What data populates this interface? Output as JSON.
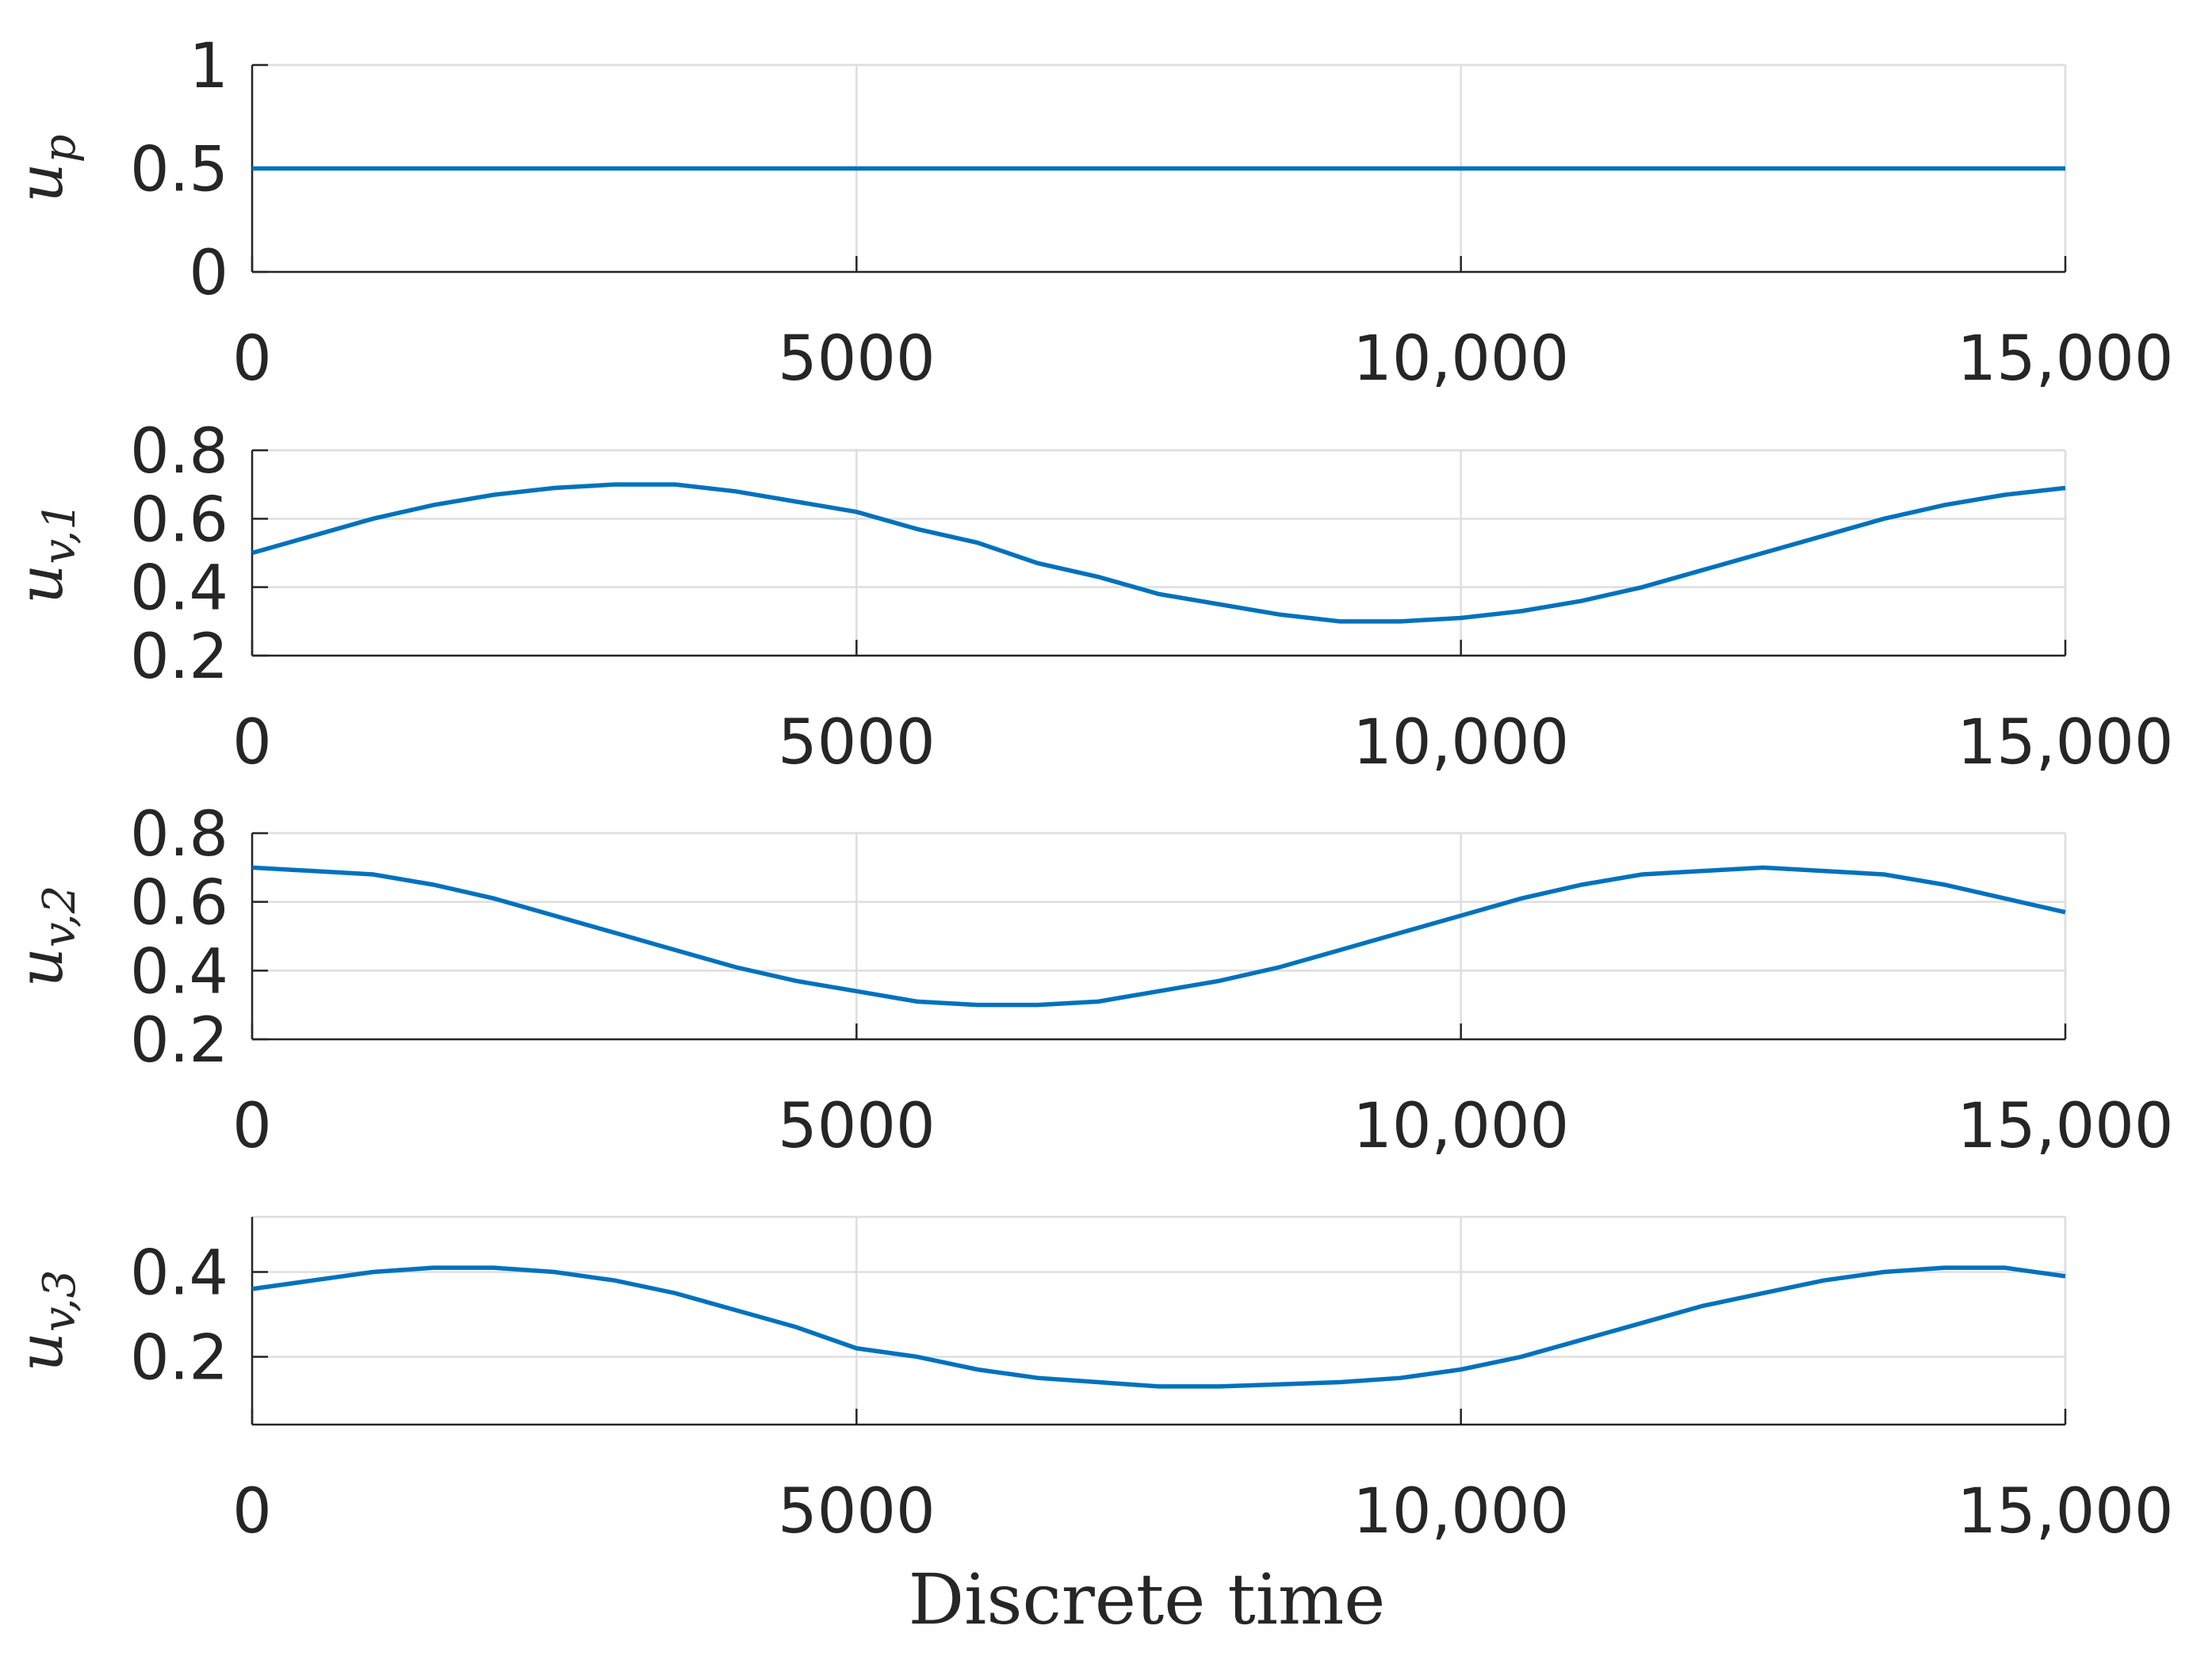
{
  "chart_data": [
    {
      "type": "line",
      "ylabel": "u",
      "ylabel_sub": "p",
      "x": [
        0,
        500,
        1000,
        1500,
        2000,
        2500,
        3000,
        3500,
        4000,
        4500,
        5000,
        5500,
        6000,
        6500,
        7000,
        7500,
        8000,
        8500,
        9000,
        9500,
        10000,
        10500,
        11000,
        11500,
        12000,
        12500,
        13000,
        13500,
        14000,
        14500,
        15000
      ],
      "series": [
        {
          "color": "#0072bd",
          "values": [
            0.5,
            0.5,
            0.5,
            0.5,
            0.5,
            0.5,
            0.5,
            0.5,
            0.5,
            0.5,
            0.5,
            0.5,
            0.5,
            0.5,
            0.5,
            0.5,
            0.5,
            0.5,
            0.5,
            0.5,
            0.5,
            0.5,
            0.5,
            0.5,
            0.5,
            0.5,
            0.5,
            0.5,
            0.5,
            0.5,
            0.5
          ]
        }
      ],
      "xlim": [
        0,
        15000
      ],
      "xticks": [
        0,
        5000,
        {
          "value": 10000,
          "label": "10,000"
        },
        {
          "value": 15000,
          "label": "15,000"
        }
      ],
      "ylim": [
        0,
        1
      ],
      "yticks": [
        0,
        0.5,
        1
      ],
      "grid": true
    },
    {
      "type": "line",
      "ylabel": "u",
      "ylabel_sub": "v,1",
      "x": [
        0,
        500,
        1000,
        1500,
        2000,
        2500,
        3000,
        3500,
        4000,
        4500,
        5000,
        5500,
        6000,
        6500,
        7000,
        7500,
        8000,
        8500,
        9000,
        9500,
        10000,
        10500,
        11000,
        11500,
        12000,
        12500,
        13000,
        13500,
        14000,
        14500,
        15000
      ],
      "series": [
        {
          "color": "#0072bd",
          "values": [
            0.5,
            0.55,
            0.6,
            0.64,
            0.67,
            0.69,
            0.7,
            0.7,
            0.68,
            0.65,
            0.62,
            0.57,
            0.53,
            0.47,
            0.43,
            0.38,
            0.35,
            0.32,
            0.3,
            0.3,
            0.31,
            0.33,
            0.36,
            0.4,
            0.45,
            0.5,
            0.55,
            0.6,
            0.64,
            0.67,
            0.69
          ]
        }
      ],
      "xlim": [
        0,
        15000
      ],
      "xticks": [
        0,
        5000,
        {
          "value": 10000,
          "label": "10,000"
        },
        {
          "value": 15000,
          "label": "15,000"
        }
      ],
      "ylim": [
        0.2,
        0.8
      ],
      "yticks": [
        0.2,
        0.4,
        0.6,
        0.8
      ],
      "grid": true
    },
    {
      "type": "line",
      "ylabel": "u",
      "ylabel_sub": "v,2",
      "x": [
        0,
        500,
        1000,
        1500,
        2000,
        2500,
        3000,
        3500,
        4000,
        4500,
        5000,
        5500,
        6000,
        6500,
        7000,
        7500,
        8000,
        8500,
        9000,
        9500,
        10000,
        10500,
        11000,
        11500,
        12000,
        12500,
        13000,
        13500,
        14000,
        14500,
        15000
      ],
      "series": [
        {
          "color": "#0072bd",
          "values": [
            0.7,
            0.69,
            0.68,
            0.65,
            0.61,
            0.56,
            0.51,
            0.46,
            0.41,
            0.37,
            0.34,
            0.31,
            0.3,
            0.3,
            0.31,
            0.34,
            0.37,
            0.41,
            0.46,
            0.51,
            0.56,
            0.61,
            0.65,
            0.68,
            0.69,
            0.7,
            0.69,
            0.68,
            0.65,
            0.61,
            0.57
          ]
        }
      ],
      "xlim": [
        0,
        15000
      ],
      "xticks": [
        0,
        5000,
        {
          "value": 10000,
          "label": "10,000"
        },
        {
          "value": 15000,
          "label": "15,000"
        }
      ],
      "ylim": [
        0.2,
        0.8
      ],
      "yticks": [
        0.2,
        0.4,
        0.6,
        0.8
      ],
      "grid": true
    },
    {
      "type": "line",
      "ylabel": "u",
      "ylabel_sub": "v,3",
      "xlabel": "Discrete time",
      "x": [
        0,
        500,
        1000,
        1500,
        2000,
        2500,
        3000,
        3500,
        4000,
        4500,
        5000,
        5500,
        6000,
        6500,
        7000,
        7500,
        8000,
        8500,
        9000,
        9500,
        10000,
        10500,
        11000,
        11500,
        12000,
        12500,
        13000,
        13500,
        14000,
        14500,
        15000
      ],
      "series": [
        {
          "color": "#0072bd",
          "values": [
            0.36,
            0.38,
            0.4,
            0.41,
            0.41,
            0.4,
            0.38,
            0.35,
            0.31,
            0.27,
            0.22,
            0.2,
            0.17,
            0.15,
            0.14,
            0.13,
            0.13,
            0.135,
            0.14,
            0.15,
            0.17,
            0.2,
            0.24,
            0.28,
            0.32,
            0.35,
            0.38,
            0.4,
            0.41,
            0.41,
            0.39
          ]
        }
      ],
      "xlim": [
        0,
        15000
      ],
      "xticks": [
        0,
        5000,
        {
          "value": 10000,
          "label": "10,000"
        },
        {
          "value": 15000,
          "label": "15,000"
        }
      ],
      "ylim": [
        0.04,
        0.53
      ],
      "yticks": [
        0.2,
        0.4
      ],
      "grid": true
    }
  ]
}
